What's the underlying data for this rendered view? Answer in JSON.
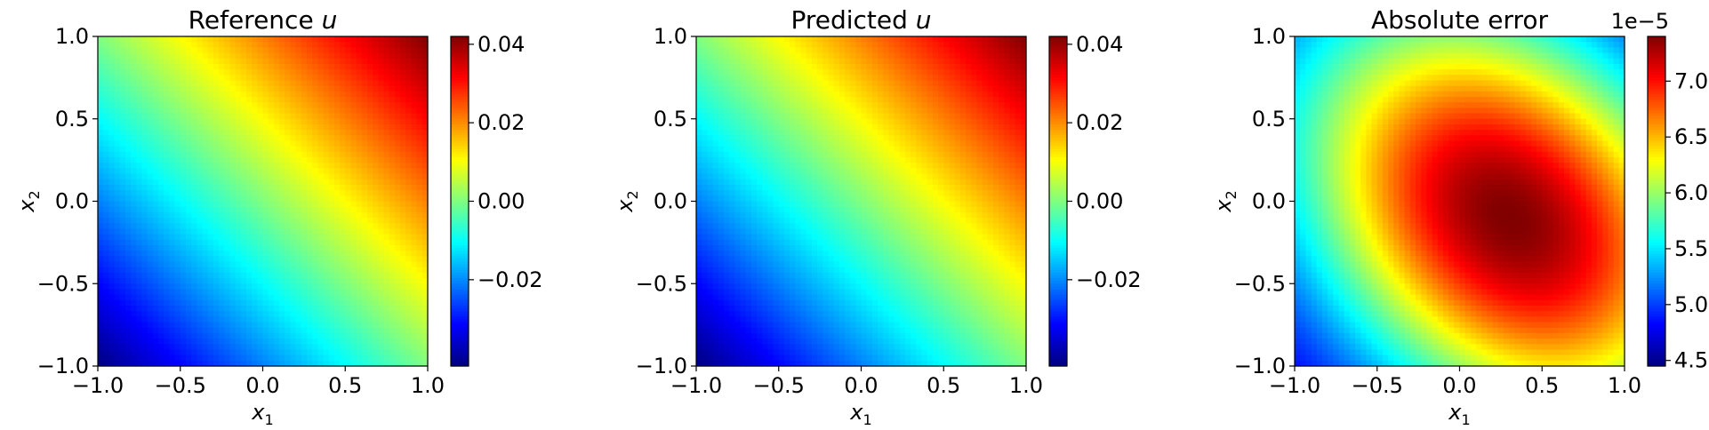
{
  "figure": {
    "background": "#ffffff",
    "colormap": "jet"
  },
  "chart_data": [
    {
      "type": "heatmap",
      "title": "Reference u",
      "title_prefix": "Reference ",
      "title_var": "u",
      "xlabel_var": "x",
      "xlabel_sub": "1",
      "ylabel_var": "x",
      "ylabel_sub": "2",
      "xlim": [
        -1.0,
        1.0
      ],
      "ylim": [
        -1.0,
        1.0
      ],
      "x_ticks": [
        -1.0,
        -0.5,
        0.0,
        0.5,
        1.0
      ],
      "y_ticks": [
        -1.0,
        -0.5,
        0.0,
        0.5,
        1.0
      ],
      "x_tick_labels": [
        "−1.0",
        "−0.5",
        "0.0",
        "0.5",
        "1.0"
      ],
      "y_tick_labels": [
        "−1.0",
        "−0.5",
        "0.0",
        "0.5",
        "1.0"
      ],
      "field": "diagonal_ramp",
      "colorbar": {
        "min": -0.042,
        "max": 0.042,
        "ticks": [
          -0.02,
          0.0,
          0.02,
          0.04
        ],
        "tick_labels": [
          "−0.02",
          "0.00",
          "0.02",
          "0.04"
        ],
        "offset_text": ""
      }
    },
    {
      "type": "heatmap",
      "title": "Predicted u",
      "title_prefix": "Predicted ",
      "title_var": "u",
      "xlabel_var": "x",
      "xlabel_sub": "1",
      "ylabel_var": "x",
      "ylabel_sub": "2",
      "xlim": [
        -1.0,
        1.0
      ],
      "ylim": [
        -1.0,
        1.0
      ],
      "x_ticks": [
        -1.0,
        -0.5,
        0.0,
        0.5,
        1.0
      ],
      "y_ticks": [
        -1.0,
        -0.5,
        0.0,
        0.5,
        1.0
      ],
      "x_tick_labels": [
        "−1.0",
        "−0.5",
        "0.0",
        "0.5",
        "1.0"
      ],
      "y_tick_labels": [
        "−1.0",
        "−0.5",
        "0.0",
        "0.5",
        "1.0"
      ],
      "field": "diagonal_ramp",
      "colorbar": {
        "min": -0.042,
        "max": 0.042,
        "ticks": [
          -0.02,
          0.0,
          0.02,
          0.04
        ],
        "tick_labels": [
          "−0.02",
          "0.00",
          "0.02",
          "0.04"
        ],
        "offset_text": ""
      }
    },
    {
      "type": "heatmap",
      "title": "Absolute error",
      "title_prefix": "Absolute error",
      "title_var": "",
      "xlabel_var": "x",
      "xlabel_sub": "1",
      "ylabel_var": "x",
      "ylabel_sub": "2",
      "xlim": [
        -1.0,
        1.0
      ],
      "ylim": [
        -1.0,
        1.0
      ],
      "x_ticks": [
        -1.0,
        -0.5,
        0.0,
        0.5,
        1.0
      ],
      "y_ticks": [
        -1.0,
        -0.5,
        0.0,
        0.5,
        1.0
      ],
      "x_tick_labels": [
        "−1.0",
        "−0.5",
        "0.0",
        "0.5",
        "1.0"
      ],
      "y_tick_labels": [
        "−1.0",
        "−0.5",
        "0.0",
        "0.5",
        "1.0"
      ],
      "field": "error_blob",
      "peak": {
        "x": 0.3,
        "y": -0.1,
        "value": 7.4
      },
      "colorbar": {
        "min": 4.45,
        "max": 7.4,
        "ticks": [
          4.5,
          5.0,
          5.5,
          6.0,
          6.5,
          7.0
        ],
        "tick_labels": [
          "4.5",
          "5.0",
          "5.5",
          "6.0",
          "6.5",
          "7.0"
        ],
        "offset_text": "1e−5"
      }
    }
  ]
}
